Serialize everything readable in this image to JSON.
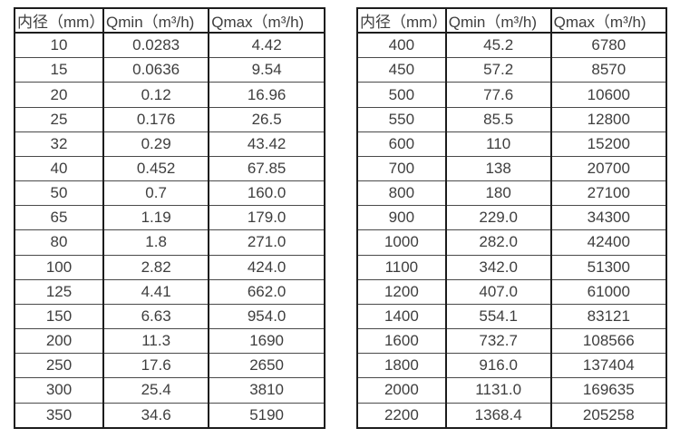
{
  "page": {
    "background": "#ffffff",
    "text_color": "#3e3e3e",
    "outer_border_color": "#1c1c1c",
    "row_line_color": "#4a4a4a"
  },
  "chart_data": [
    {
      "type": "table",
      "title": "",
      "columns": [
        "内径（mm）",
        "Qmin（m³/h)",
        "Qmax（m³/h)"
      ],
      "rows": [
        [
          "10",
          "0.0283",
          "4.42"
        ],
        [
          "15",
          "0.0636",
          "9.54"
        ],
        [
          "20",
          "0.12",
          "16.96"
        ],
        [
          "25",
          "0.176",
          "26.5"
        ],
        [
          "32",
          "0.29",
          "43.42"
        ],
        [
          "40",
          "0.452",
          "67.85"
        ],
        [
          "50",
          "0.7",
          "160.0"
        ],
        [
          "65",
          "1.19",
          "179.0"
        ],
        [
          "80",
          "1.8",
          "271.0"
        ],
        [
          "100",
          "2.82",
          "424.0"
        ],
        [
          "125",
          "4.41",
          "662.0"
        ],
        [
          "150",
          "6.63",
          "954.0"
        ],
        [
          "200",
          "11.3",
          "1690"
        ],
        [
          "250",
          "17.6",
          "2650"
        ],
        [
          "300",
          "25.4",
          "3810"
        ],
        [
          "350",
          "34.6",
          "5190"
        ]
      ]
    },
    {
      "type": "table",
      "title": "",
      "columns": [
        "内径（mm）",
        "Qmin（m³/h)",
        "Qmax（m³/h)"
      ],
      "rows": [
        [
          "400",
          "45.2",
          "6780"
        ],
        [
          "450",
          "57.2",
          "8570"
        ],
        [
          "500",
          "77.6",
          "10600"
        ],
        [
          "550",
          "85.5",
          "12800"
        ],
        [
          "600",
          "110",
          "15200"
        ],
        [
          "700",
          "138",
          "20700"
        ],
        [
          "800",
          "180",
          "27100"
        ],
        [
          "900",
          "229.0",
          "34300"
        ],
        [
          "1000",
          "282.0",
          "42400"
        ],
        [
          "1100",
          "342.0",
          "51300"
        ],
        [
          "1200",
          "407.0",
          "61000"
        ],
        [
          "1400",
          "554.1",
          "83121"
        ],
        [
          "1600",
          "732.7",
          "108566"
        ],
        [
          "1800",
          "916.0",
          "137404"
        ],
        [
          "2000",
          "1131.0",
          "169635"
        ],
        [
          "2200",
          "1368.4",
          "205258"
        ]
      ]
    }
  ]
}
